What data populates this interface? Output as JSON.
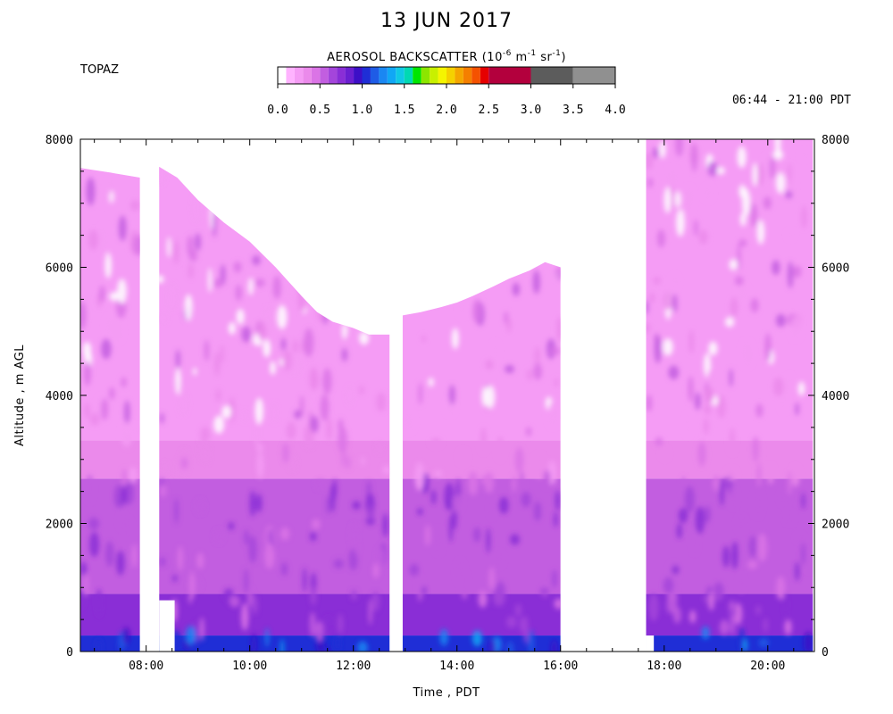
{
  "chart_data": {
    "type": "heatmap",
    "title": "13 JUN 2017",
    "station": "TOPAZ",
    "time_range_label": "06:44 - 21:00 PDT",
    "colorbar": {
      "title_main": "AEROSOL BACKSCATTER (10",
      "title_exp1": "-6",
      "title_mid1": " m",
      "title_exp2": "-1",
      "title_mid2": " sr",
      "title_exp3": "-1",
      "title_end": ")",
      "ticks": [
        "0.0",
        "0.5",
        "1.0",
        "1.5",
        "2.0",
        "2.5",
        "3.0",
        "3.5",
        "4.0"
      ],
      "tick_values": [
        0.0,
        0.5,
        1.0,
        1.5,
        2.0,
        2.5,
        3.0,
        3.5,
        4.0
      ],
      "colors": [
        "#ffffff",
        "#ffb3ff",
        "#f59cf5",
        "#eb8aeb",
        "#db74e6",
        "#c25ee0",
        "#a445db",
        "#8a2ed6",
        "#6b1fd1",
        "#3d0fc7",
        "#1f2ed6",
        "#1f5ce6",
        "#1a87f2",
        "#10a7f5",
        "#0fc8e6",
        "#00d9b3",
        "#00e600",
        "#8ce600",
        "#c8f000",
        "#f5f500",
        "#f5d100",
        "#f5a600",
        "#f57f00",
        "#f55200",
        "#e60000",
        "#b3003d",
        "#5c5c5c",
        "#909090",
        "#c8c8c8"
      ],
      "color_breaks": [
        0.0,
        0.1,
        0.2,
        0.3,
        0.4,
        0.5,
        0.6,
        0.7,
        0.8,
        0.9,
        1.0,
        1.1,
        1.2,
        1.3,
        1.4,
        1.5,
        1.6,
        1.7,
        1.8,
        1.9,
        2.0,
        2.1,
        2.2,
        2.3,
        2.4,
        2.5,
        3.0,
        3.5,
        4.0
      ]
    },
    "xlabel": "Time , PDT",
    "ylabel": "Altitude , m AGL",
    "x_range_hours": [
      6.73,
      20.9
    ],
    "y_range_m": [
      0,
      8000
    ],
    "x_ticks": [
      "08:00",
      "10:00",
      "12:00",
      "14:00",
      "16:00",
      "18:00",
      "20:00"
    ],
    "x_tick_hours": [
      8,
      10,
      12,
      14,
      16,
      18,
      20
    ],
    "y_ticks": [
      "0",
      "2000",
      "4000",
      "6000",
      "8000"
    ],
    "y_tick_values": [
      0,
      2000,
      4000,
      6000,
      8000
    ],
    "data_segments": [
      {
        "start": "06:44",
        "end": "07:53",
        "top_m": [
          [
            6.73,
            7550
          ],
          [
            7.3,
            7480
          ],
          [
            7.88,
            7400
          ]
        ],
        "base_m": 0
      },
      {
        "start": "08:15",
        "end": "12:42",
        "top_m": [
          [
            8.25,
            7570
          ],
          [
            8.6,
            7400
          ],
          [
            9.0,
            7050
          ],
          [
            9.5,
            6700
          ],
          [
            10.0,
            6400
          ],
          [
            10.5,
            6000
          ],
          [
            11.0,
            5550
          ],
          [
            11.3,
            5300
          ],
          [
            11.6,
            5150
          ],
          [
            12.0,
            5050
          ],
          [
            12.3,
            4950
          ],
          [
            12.7,
            4950
          ]
        ],
        "base_m": 0,
        "low_gap_m": [
          0,
          800
        ],
        "low_gap_hours": [
          8.25,
          8.55
        ]
      },
      {
        "start": "12:55",
        "end": "16:00",
        "top_m": [
          [
            12.95,
            5250
          ],
          [
            13.3,
            5300
          ],
          [
            13.7,
            5380
          ],
          [
            14.0,
            5450
          ],
          [
            14.3,
            5550
          ],
          [
            14.7,
            5700
          ],
          [
            15.0,
            5820
          ],
          [
            15.4,
            5950
          ],
          [
            15.7,
            6080
          ],
          [
            16.0,
            6000
          ]
        ],
        "base_m": 0
      },
      {
        "start": "17:40",
        "end": "20:55",
        "top_m": [
          [
            17.65,
            8000
          ],
          [
            20.87,
            8000
          ]
        ],
        "base_m": 0,
        "low_gap_m": [
          0,
          250
        ],
        "low_gap_hours": [
          17.65,
          17.8
        ]
      }
    ],
    "layers_m": [
      {
        "bottom": 0,
        "top": 250,
        "value": 1.0
      },
      {
        "bottom": 250,
        "top": 900,
        "value": 0.7
      },
      {
        "bottom": 900,
        "top": 2700,
        "value": 0.5
      },
      {
        "bottom": 2700,
        "top": 3300,
        "value": 0.35
      },
      {
        "bottom": 3300,
        "top": 8000,
        "value": 0.2
      }
    ]
  }
}
